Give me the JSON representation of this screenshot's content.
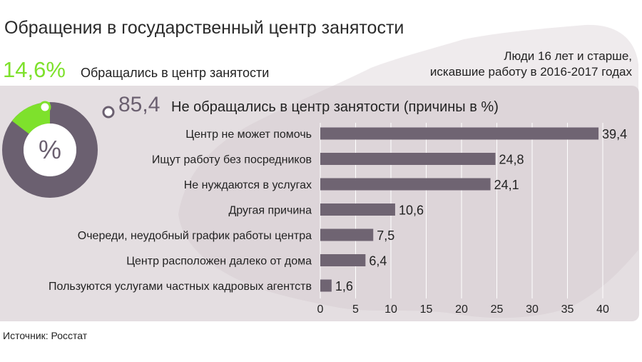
{
  "header": {
    "title": "Обращения в государственный центр занятости",
    "subtitle_line1": "Люди 16 лет и старше,",
    "subtitle_line2": "искавшие работу в 2016-2017 годах"
  },
  "donut": {
    "used_value_text": "14,6%",
    "used_label": "Обращались в центр занятости",
    "center_symbol": "%",
    "not_used_value_text": "85,4",
    "not_used_label": "Не обращались в центр занятости (причины в %)",
    "used_share": 14.6,
    "not_used_share": 85.4
  },
  "colors": {
    "accent_green": "#7ee12c",
    "bar_fill": "#6f6472",
    "donut_gray": "#6b6070",
    "panel": "#d6cdd2"
  },
  "chart_data": {
    "type": "bar",
    "orientation": "horizontal",
    "categories": [
      "Центр не может помочь",
      "Ищут работу без посредников",
      "Не нуждаются в услугах",
      "Другая причина",
      "Очереди, неудобный график работы центра",
      "Центр расположен далеко от дома",
      "Пользуются услугами частных кадровых агентств"
    ],
    "values": [
      39.4,
      24.8,
      24.1,
      10.6,
      7.5,
      6.4,
      1.6
    ],
    "value_labels": [
      "39,4",
      "24,8",
      "24,1",
      "10,6",
      "7,5",
      "6,4",
      "1,6"
    ],
    "xlim": [
      0,
      40
    ],
    "xticks": [
      "0",
      "5",
      "10",
      "15",
      "20",
      "25",
      "30",
      "35",
      "40"
    ],
    "grid": true
  },
  "footer": {
    "source": "Источник: Росстат"
  }
}
